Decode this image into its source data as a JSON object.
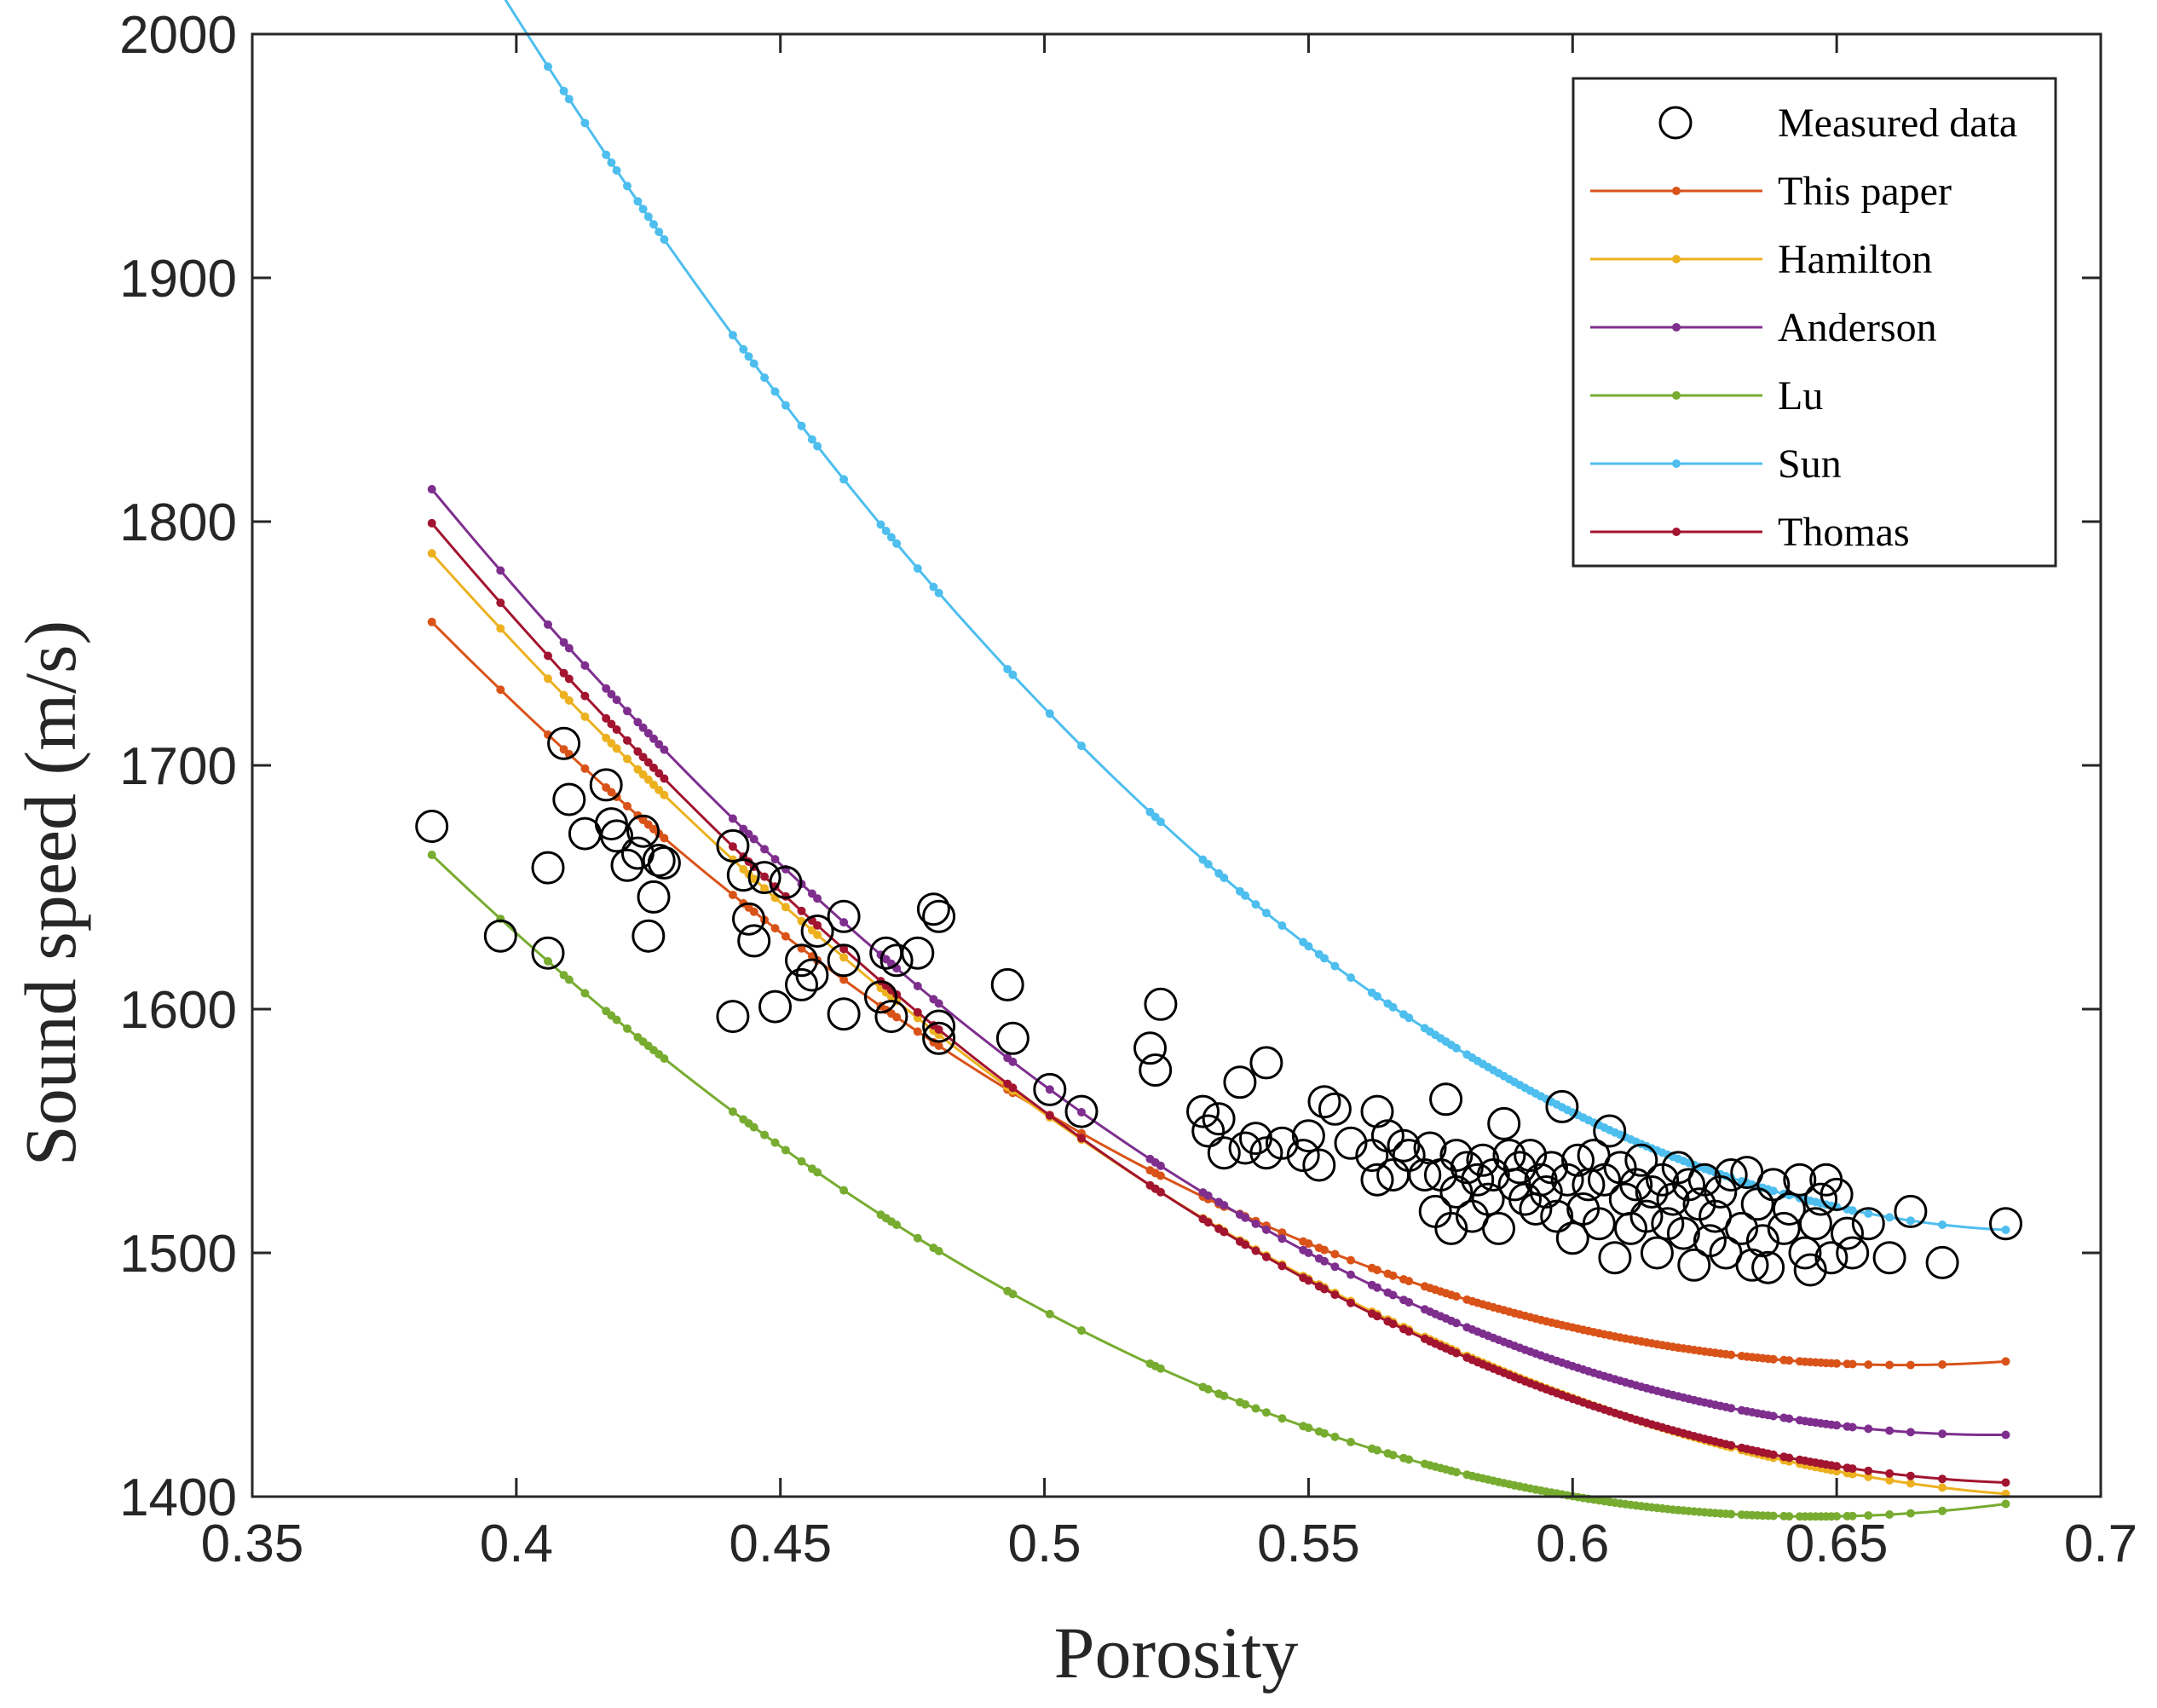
{
  "chart_data": {
    "type": "scatter",
    "xlabel": "Porosity",
    "ylabel": "Sound speed (m/s)",
    "xlim": [
      0.35,
      0.7
    ],
    "ylim": [
      1400,
      2000
    ],
    "xticks": [
      0.35,
      0.4,
      0.45,
      0.5,
      0.55,
      0.6,
      0.65,
      0.7
    ],
    "xtick_labels": [
      "0.35",
      "0.4",
      "0.45",
      "0.5",
      "0.55",
      "0.6",
      "0.65",
      "0.7"
    ],
    "yticks": [
      1400,
      1500,
      1600,
      1700,
      1800,
      1900,
      2000
    ],
    "ytick_labels": [
      "1400",
      "1500",
      "1600",
      "1700",
      "1800",
      "1900",
      "2000"
    ],
    "grid": false,
    "legend_position": "top-right",
    "measured": {
      "name": "Measured data",
      "color": "#000000",
      "marker": "open-circle",
      "points": [
        [
          0.384,
          1675
        ],
        [
          0.397,
          1630
        ],
        [
          0.406,
          1623
        ],
        [
          0.406,
          1658
        ],
        [
          0.409,
          1709
        ],
        [
          0.41,
          1686
        ],
        [
          0.413,
          1672
        ],
        [
          0.417,
          1692
        ],
        [
          0.418,
          1676
        ],
        [
          0.419,
          1671
        ],
        [
          0.421,
          1659
        ],
        [
          0.423,
          1664
        ],
        [
          0.424,
          1673
        ],
        [
          0.425,
          1630
        ],
        [
          0.426,
          1646
        ],
        [
          0.427,
          1661
        ],
        [
          0.428,
          1660
        ],
        [
          0.441,
          1667
        ],
        [
          0.441,
          1597
        ],
        [
          0.443,
          1655
        ],
        [
          0.444,
          1637
        ],
        [
          0.445,
          1628
        ],
        [
          0.447,
          1654
        ],
        [
          0.449,
          1601
        ],
        [
          0.451,
          1652
        ],
        [
          0.454,
          1620
        ],
        [
          0.454,
          1610
        ],
        [
          0.456,
          1614
        ],
        [
          0.457,
          1632
        ],
        [
          0.462,
          1638
        ],
        [
          0.462,
          1620
        ],
        [
          0.462,
          1598
        ],
        [
          0.469,
          1605
        ],
        [
          0.47,
          1623
        ],
        [
          0.471,
          1597
        ],
        [
          0.472,
          1620
        ],
        [
          0.476,
          1623
        ],
        [
          0.479,
          1641
        ],
        [
          0.48,
          1638
        ],
        [
          0.48,
          1593
        ],
        [
          0.48,
          1588
        ],
        [
          0.493,
          1610
        ],
        [
          0.494,
          1588
        ],
        [
          0.501,
          1567
        ],
        [
          0.507,
          1558
        ],
        [
          0.52,
          1584
        ],
        [
          0.521,
          1575
        ],
        [
          0.522,
          1602
        ],
        [
          0.53,
          1558
        ],
        [
          0.531,
          1550
        ],
        [
          0.533,
          1555
        ],
        [
          0.534,
          1541
        ],
        [
          0.537,
          1570
        ],
        [
          0.538,
          1543
        ],
        [
          0.54,
          1547
        ],
        [
          0.542,
          1541
        ],
        [
          0.542,
          1578
        ],
        [
          0.545,
          1545
        ],
        [
          0.549,
          1540
        ],
        [
          0.55,
          1548
        ],
        [
          0.552,
          1536
        ],
        [
          0.553,
          1562
        ],
        [
          0.555,
          1559
        ],
        [
          0.558,
          1545
        ],
        [
          0.562,
          1540
        ],
        [
          0.563,
          1558
        ],
        [
          0.563,
          1530
        ],
        [
          0.565,
          1548
        ],
        [
          0.566,
          1532
        ],
        [
          0.568,
          1544
        ],
        [
          0.569,
          1540
        ],
        [
          0.572,
          1532
        ],
        [
          0.573,
          1543
        ],
        [
          0.574,
          1517
        ],
        [
          0.575,
          1532
        ],
        [
          0.576,
          1563
        ],
        [
          0.577,
          1510
        ],
        [
          0.578,
          1540
        ],
        [
          0.578,
          1525
        ],
        [
          0.58,
          1535
        ],
        [
          0.581,
          1515
        ],
        [
          0.582,
          1530
        ],
        [
          0.583,
          1538
        ],
        [
          0.584,
          1522
        ],
        [
          0.585,
          1532
        ],
        [
          0.586,
          1510
        ],
        [
          0.587,
          1553
        ],
        [
          0.588,
          1540
        ],
        [
          0.589,
          1528
        ],
        [
          0.59,
          1535
        ],
        [
          0.591,
          1522
        ],
        [
          0.592,
          1540
        ],
        [
          0.593,
          1518
        ],
        [
          0.594,
          1530
        ],
        [
          0.595,
          1525
        ],
        [
          0.596,
          1535
        ],
        [
          0.597,
          1515
        ],
        [
          0.598,
          1560
        ],
        [
          0.599,
          1530
        ],
        [
          0.6,
          1506
        ],
        [
          0.601,
          1538
        ],
        [
          0.602,
          1518
        ],
        [
          0.603,
          1528
        ],
        [
          0.604,
          1540
        ],
        [
          0.605,
          1512
        ],
        [
          0.606,
          1530
        ],
        [
          0.607,
          1550
        ],
        [
          0.608,
          1498
        ],
        [
          0.609,
          1535
        ],
        [
          0.61,
          1522
        ],
        [
          0.611,
          1510
        ],
        [
          0.612,
          1528
        ],
        [
          0.613,
          1538
        ],
        [
          0.614,
          1515
        ],
        [
          0.615,
          1525
        ],
        [
          0.616,
          1500
        ],
        [
          0.617,
          1530
        ],
        [
          0.618,
          1512
        ],
        [
          0.619,
          1522
        ],
        [
          0.62,
          1535
        ],
        [
          0.621,
          1508
        ],
        [
          0.622,
          1528
        ],
        [
          0.623,
          1495
        ],
        [
          0.624,
          1520
        ],
        [
          0.625,
          1530
        ],
        [
          0.626,
          1505
        ],
        [
          0.627,
          1515
        ],
        [
          0.628,
          1525
        ],
        [
          0.629,
          1500
        ],
        [
          0.63,
          1532
        ],
        [
          0.632,
          1510
        ],
        [
          0.633,
          1533
        ],
        [
          0.634,
          1495
        ],
        [
          0.635,
          1520
        ],
        [
          0.636,
          1505
        ],
        [
          0.637,
          1494
        ],
        [
          0.638,
          1528
        ],
        [
          0.64,
          1510
        ],
        [
          0.641,
          1518
        ],
        [
          0.643,
          1530
        ],
        [
          0.644,
          1500
        ],
        [
          0.645,
          1493
        ],
        [
          0.646,
          1512
        ],
        [
          0.647,
          1522
        ],
        [
          0.648,
          1530
        ],
        [
          0.649,
          1498
        ],
        [
          0.65,
          1524
        ],
        [
          0.652,
          1508
        ],
        [
          0.653,
          1500
        ],
        [
          0.656,
          1512
        ],
        [
          0.66,
          1498
        ],
        [
          0.664,
          1517
        ],
        [
          0.67,
          1496
        ],
        [
          0.682,
          1512
        ]
      ]
    },
    "series": [
      {
        "name": "This paper",
        "color": "#D95319",
        "coeffs": [
          3177.9,
          -5203.1,
          3926.0
        ]
      },
      {
        "name": "Hamilton",
        "color": "#EDB120",
        "coeffs": [
          3272.4,
          -5317.4,
          3773.6
        ]
      },
      {
        "name": "Anderson",
        "color": "#7E2F8E",
        "coeffs": [
          3475.0,
          -6030.9,
          4436.3
        ]
      },
      {
        "name": "Lu",
        "color": "#77AC30",
        "coeffs": [
          3043.5,
          -5114.9,
          3960.0
        ]
      },
      {
        "name": "Sun",
        "color": "#4DBEEE",
        "coeffs": [
          4318.2,
          -8132.0,
          5885.0
        ]
      },
      {
        "name": "Thomas",
        "color": "#A2142F",
        "coeffs": [
          3399.9,
          -5771.3,
          4175.0
        ]
      }
    ]
  }
}
